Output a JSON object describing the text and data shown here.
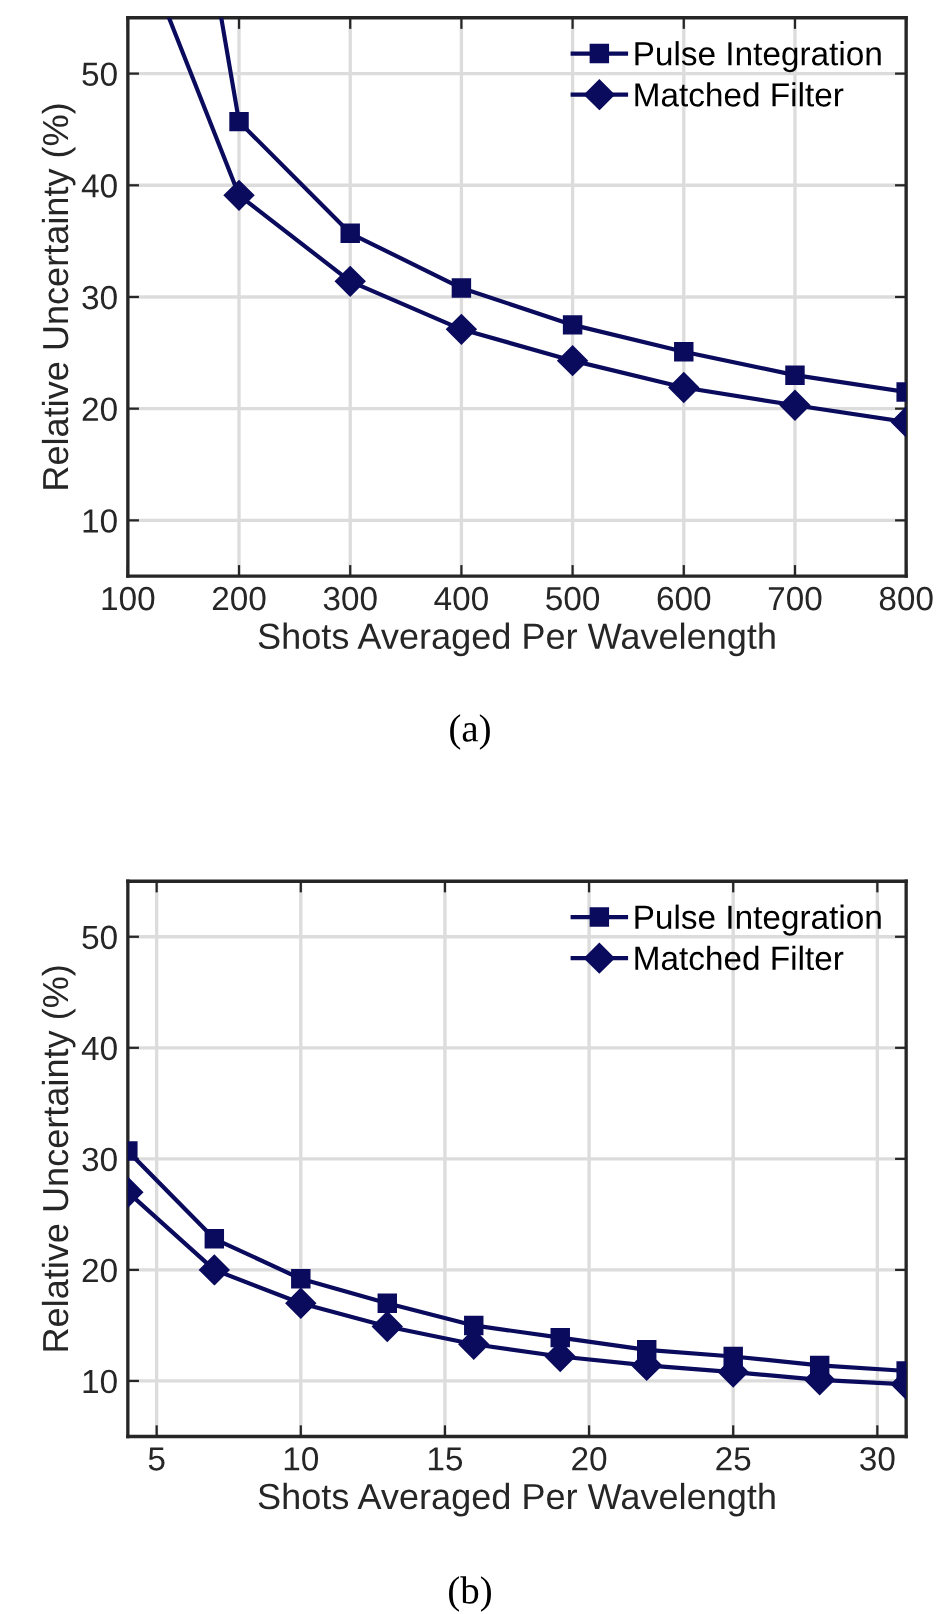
{
  "chart_data": [
    {
      "type": "line",
      "xlabel": "Shots Averaged Per Wavelength",
      "ylabel": "Relative Uncertainty (%)",
      "annotations": [
        "(a)"
      ],
      "xlim": [
        100,
        800
      ],
      "xticks": [
        100,
        200,
        300,
        400,
        500,
        600,
        700,
        800
      ],
      "ylim": [
        5,
        55
      ],
      "yticks": [
        10,
        20,
        30,
        40,
        50
      ],
      "grid": true,
      "legend": "top right",
      "series": [
        {
          "name": "Pulse Integration",
          "color": "#0b0b5e",
          "marker": "square",
          "x": [
            200,
            300,
            400,
            500,
            600,
            700,
            800
          ],
          "values": [
            45.7,
            35.7,
            30.8,
            27.5,
            25.1,
            23.0,
            21.5
          ]
        },
        {
          "name": "Matched Filter",
          "color": "#0b0b5e",
          "marker": "diamond",
          "x": [
            200,
            300,
            400,
            500,
            600,
            700,
            800
          ],
          "values": [
            39.1,
            31.4,
            27.1,
            24.3,
            21.9,
            20.3,
            18.8
          ]
        },
        {
          "color": "#0b0b5e",
          "marker": "none",
          "x": [
            184,
            200
          ],
          "values": [
            55,
            45.7
          ]
        },
        {
          "color": "#0b0b5e",
          "marker": "none",
          "x": [
            137,
            200
          ],
          "values": [
            55,
            39.1
          ]
        }
      ]
    },
    {
      "type": "line",
      "xlabel": "Shots Averaged Per Wavelength",
      "ylabel": "Relative Uncertainty (%)",
      "annotations": [
        "(b)"
      ],
      "xlim": [
        4,
        31
      ],
      "xticks": [
        5,
        10,
        15,
        20,
        25,
        30
      ],
      "ylim": [
        5,
        55
      ],
      "yticks": [
        10,
        20,
        30,
        40,
        50
      ],
      "grid": true,
      "legend": "top right",
      "series": [
        {
          "name": "Pulse Integration",
          "color": "#0b0b5e",
          "marker": "square",
          "x": [
            4,
            7,
            10,
            13,
            16,
            19,
            22,
            25,
            28,
            31
          ],
          "values": [
            30.7,
            22.8,
            19.2,
            17.0,
            15.0,
            13.9,
            12.8,
            12.2,
            11.4,
            10.9
          ]
        },
        {
          "name": "Matched Filter",
          "color": "#0b0b5e",
          "marker": "diamond",
          "x": [
            4,
            7,
            10,
            13,
            16,
            19,
            22,
            25,
            28,
            31
          ],
          "values": [
            27.0,
            20.0,
            17.0,
            14.9,
            13.3,
            12.2,
            11.4,
            10.8,
            10.1,
            9.7
          ]
        }
      ]
    }
  ]
}
